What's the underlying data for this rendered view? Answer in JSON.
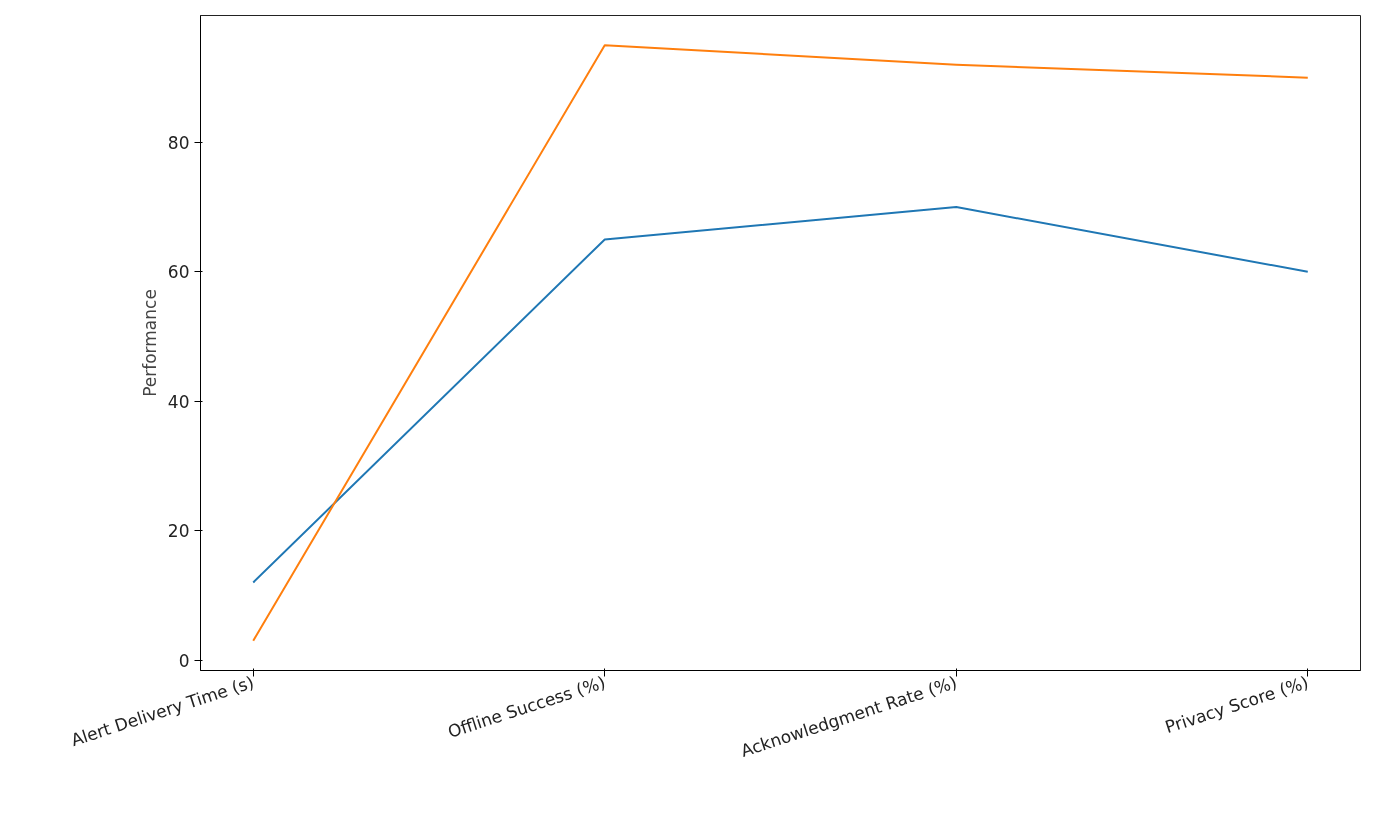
{
  "chart_data": {
    "type": "line",
    "ylabel": "Performance",
    "categories": [
      "Alert Delivery Time (s)",
      "Offline Success (%)",
      "Acknowledgment Rate (%)",
      "Privacy Score (%)"
    ],
    "series": [
      {
        "color": "#1f77b4",
        "values": [
          12,
          65,
          70,
          60
        ]
      },
      {
        "color": "#ff7f0e",
        "values": [
          3,
          95,
          92,
          90
        ]
      }
    ],
    "ylim": [
      -1.6,
      99.6
    ],
    "yticks": [
      0,
      20,
      40,
      60,
      80
    ],
    "grid": false,
    "marker": "none",
    "line_style": "solid"
  }
}
